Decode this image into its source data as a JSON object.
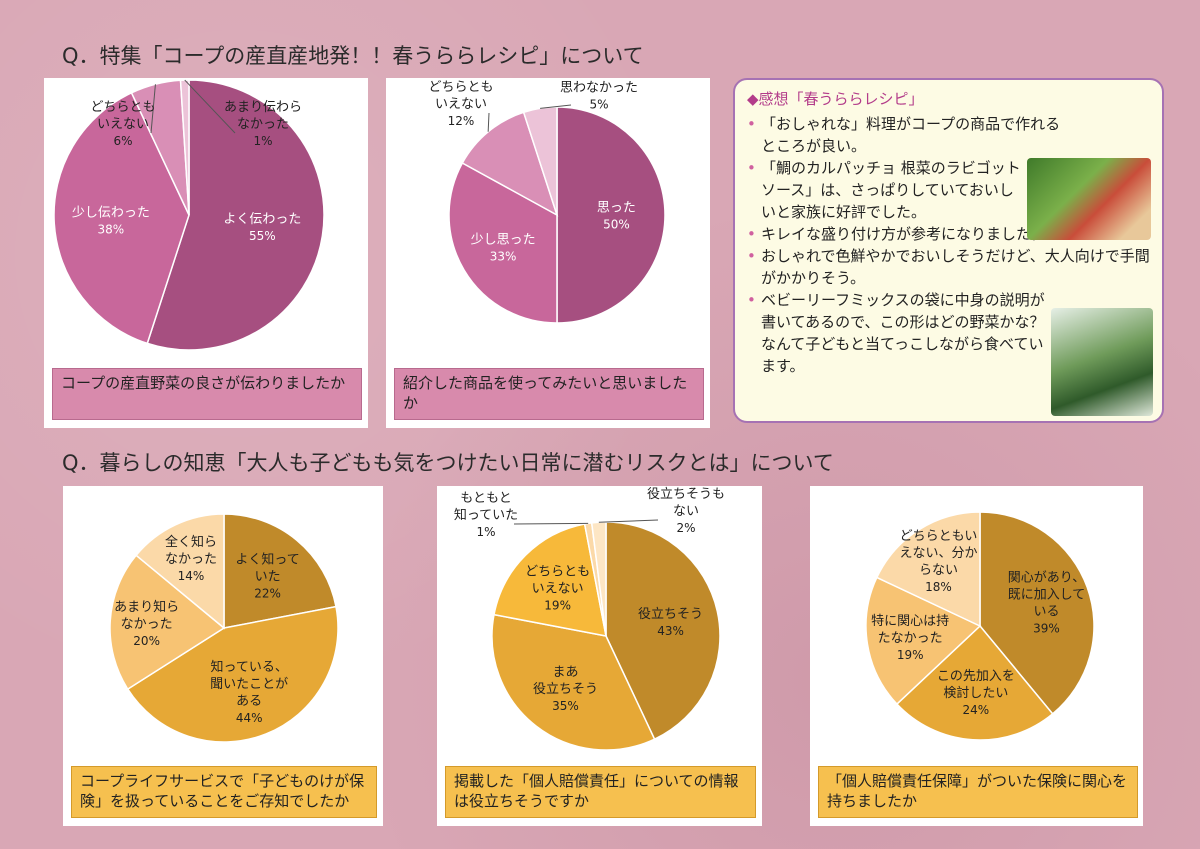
{
  "section1_title": "Q．特集「コープの産直産地発！！春うららレシピ」について",
  "section2_title": "Q．暮らしの知恵「大人も子どもも気をつけたい日常に潜むリスクとは」について",
  "comments": {
    "title": "◆感想「春うららレシピ」",
    "items": [
      "「おしゃれな」料理がコープの商品で作れるところが良い。",
      "「鯛のカルパッチョ 根菜のラビゴットソース」は、さっぱりしていておいしいと家族に好評でした。",
      "キレイな盛り付け方が参考になりました。",
      "おしゃれで色鮮やかでおいしそうだけど、大人向けで手間がかかりそう。",
      "ベビーリーフミックスの袋に中身の説明が書いてあるので、この形はどの野菜かな？なんて子どもと当てっこしながら食べています。"
    ]
  },
  "chart_data": [
    {
      "type": "pie",
      "caption": "コープの産直野菜の良さが伝わりましたか",
      "slices": [
        {
          "label": [
            "よく伝わった"
          ],
          "value": 55,
          "pct": "55%",
          "color": "#a64f80"
        },
        {
          "label": [
            "少し伝わった"
          ],
          "value": 38,
          "pct": "38%",
          "color": "#c8679b"
        },
        {
          "label": [
            "どちらとも",
            "いえない"
          ],
          "value": 6,
          "pct": "6%",
          "color": "#d98fb6"
        },
        {
          "label": [
            "あまり伝わら",
            "なかった"
          ],
          "value": 1,
          "pct": "1%",
          "color": "#ecc3d8"
        }
      ]
    },
    {
      "type": "pie",
      "caption": "紹介した商品を使ってみたいと思いましたか",
      "slices": [
        {
          "label": [
            "思った"
          ],
          "value": 50,
          "pct": "50%",
          "color": "#a64f80"
        },
        {
          "label": [
            "少し思った"
          ],
          "value": 33,
          "pct": "33%",
          "color": "#c8679b"
        },
        {
          "label": [
            "どちらとも",
            "いえない"
          ],
          "value": 12,
          "pct": "12%",
          "color": "#d98fb6"
        },
        {
          "label": [
            "思わなかった"
          ],
          "value": 5,
          "pct": "5%",
          "color": "#ecc3d8"
        }
      ]
    },
    {
      "type": "pie",
      "caption": "コープライフサービスで「子どものけが保険」を扱っていることをご存知でしたか",
      "slices": [
        {
          "label": [
            "よく知って",
            "いた"
          ],
          "value": 22,
          "pct": "22%",
          "color": "#c08a2a"
        },
        {
          "label": [
            "知っている、",
            "聞いたことが",
            "ある"
          ],
          "value": 44,
          "pct": "44%",
          "color": "#e6a836"
        },
        {
          "label": [
            "あまり知ら",
            "なかった"
          ],
          "value": 20,
          "pct": "20%",
          "color": "#f7c373"
        },
        {
          "label": [
            "全く知ら",
            "なかった"
          ],
          "value": 14,
          "pct": "14%",
          "color": "#fbd9a8"
        }
      ]
    },
    {
      "type": "pie",
      "caption": "掲載した「個人賠償責任」についての情報は役立ちそうですか",
      "slices": [
        {
          "label": [
            "役立ちそう"
          ],
          "value": 43,
          "pct": "43%",
          "color": "#c08a2a"
        },
        {
          "label": [
            "まあ",
            "役立ちそう"
          ],
          "value": 35,
          "pct": "35%",
          "color": "#e6a836"
        },
        {
          "label": [
            "どちらとも",
            "いえない"
          ],
          "value": 19,
          "pct": "19%",
          "color": "#f7b93a"
        },
        {
          "label": [
            "もともと",
            "知っていた"
          ],
          "value": 1,
          "pct": "1%",
          "color": "#fbd9a8"
        },
        {
          "label": [
            "役立ちそうも",
            "ない"
          ],
          "value": 2,
          "pct": "2%",
          "color": "#fde6c4"
        }
      ]
    },
    {
      "type": "pie",
      "caption": "「個人賠償責任保障」がついた保険に関心を持ちましたか",
      "slices": [
        {
          "label": [
            "関心があり、",
            "既に加入して",
            "いる"
          ],
          "value": 39,
          "pct": "39%",
          "color": "#c08a2a"
        },
        {
          "label": [
            "この先加入を",
            "検討したい"
          ],
          "value": 24,
          "pct": "24%",
          "color": "#e6a836"
        },
        {
          "label": [
            "特に関心は持",
            "たなかった"
          ],
          "value": 19,
          "pct": "19%",
          "color": "#f7c373"
        },
        {
          "label": [
            "どちらともい",
            "えない、分か",
            "らない"
          ],
          "value": 18,
          "pct": "18%",
          "color": "#fbd9a8"
        }
      ]
    }
  ]
}
